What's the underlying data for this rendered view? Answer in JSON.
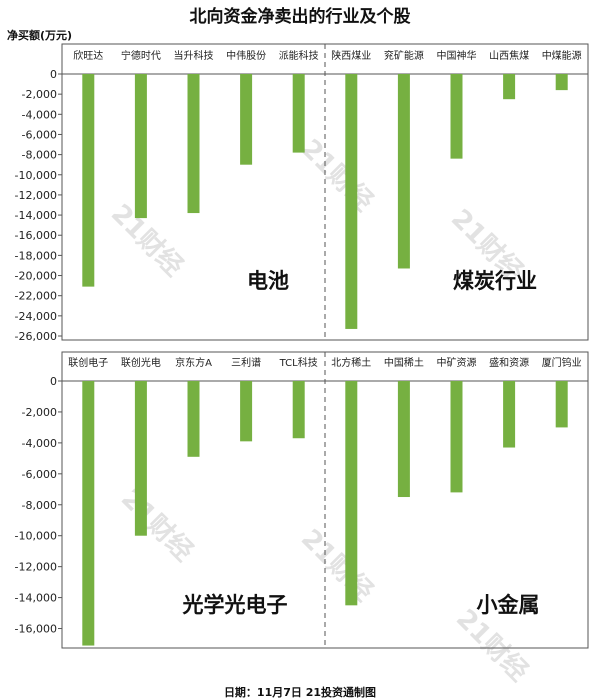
{
  "title": "北向资金净卖出的行业及个股",
  "unit_label": "净买额(万元)",
  "footer": "日期：11月7日 21投资通制图",
  "watermark": "21财经",
  "colors": {
    "bar": "#76b041",
    "axis": "#555555",
    "divider": "#555555"
  },
  "chart_data": [
    {
      "type": "bar",
      "ylim": [
        -26000,
        0
      ],
      "yticks": [
        0,
        -2000,
        -4000,
        -6000,
        -8000,
        -10000,
        -12000,
        -14000,
        -16000,
        -18000,
        -20000,
        -22000,
        -24000,
        -26000
      ],
      "yticklabels": [
        "0",
        "-2,000",
        "-4,000",
        "-6,000",
        "-8,000",
        "-10,000",
        "-12,000",
        "-14,000",
        "-16,000",
        "-18,000",
        "-20,000",
        "-22,000",
        "-24,000",
        "-26,000"
      ],
      "categories": [
        "欣旺达",
        "宁德时代",
        "当升科技",
        "中伟股份",
        "派能科技",
        "陕西煤业",
        "兖矿能源",
        "中国神华",
        "山西焦煤",
        "中煤能源"
      ],
      "values": [
        -21100,
        -14300,
        -13800,
        -9000,
        -7800,
        -25300,
        -19300,
        -8400,
        -2500,
        -1600
      ],
      "groups": [
        {
          "label": "电池",
          "count": 5
        },
        {
          "label": "煤炭行业",
          "count": 5
        }
      ]
    },
    {
      "type": "bar",
      "ylim": [
        -17000,
        0
      ],
      "yticks": [
        0,
        -2000,
        -4000,
        -6000,
        -8000,
        -10000,
        -12000,
        -14000,
        -16000
      ],
      "yticklabels": [
        "0",
        "-2,000",
        "-4,000",
        "-6,000",
        "-8,000",
        "-10,000",
        "-12,000",
        "-14,000",
        "-16,000"
      ],
      "categories": [
        "联创电子",
        "联创光电",
        "京东方A",
        "三利谱",
        "TCL科技",
        "北方稀土",
        "中国稀土",
        "中矿资源",
        "盛和资源",
        "厦门钨业"
      ],
      "values": [
        -17100,
        -10000,
        -4900,
        -3900,
        -3700,
        -14500,
        -7500,
        -7200,
        -4300,
        -3000
      ],
      "groups": [
        {
          "label": "光学光电子",
          "count": 5
        },
        {
          "label": "小金属",
          "count": 5
        }
      ]
    }
  ]
}
